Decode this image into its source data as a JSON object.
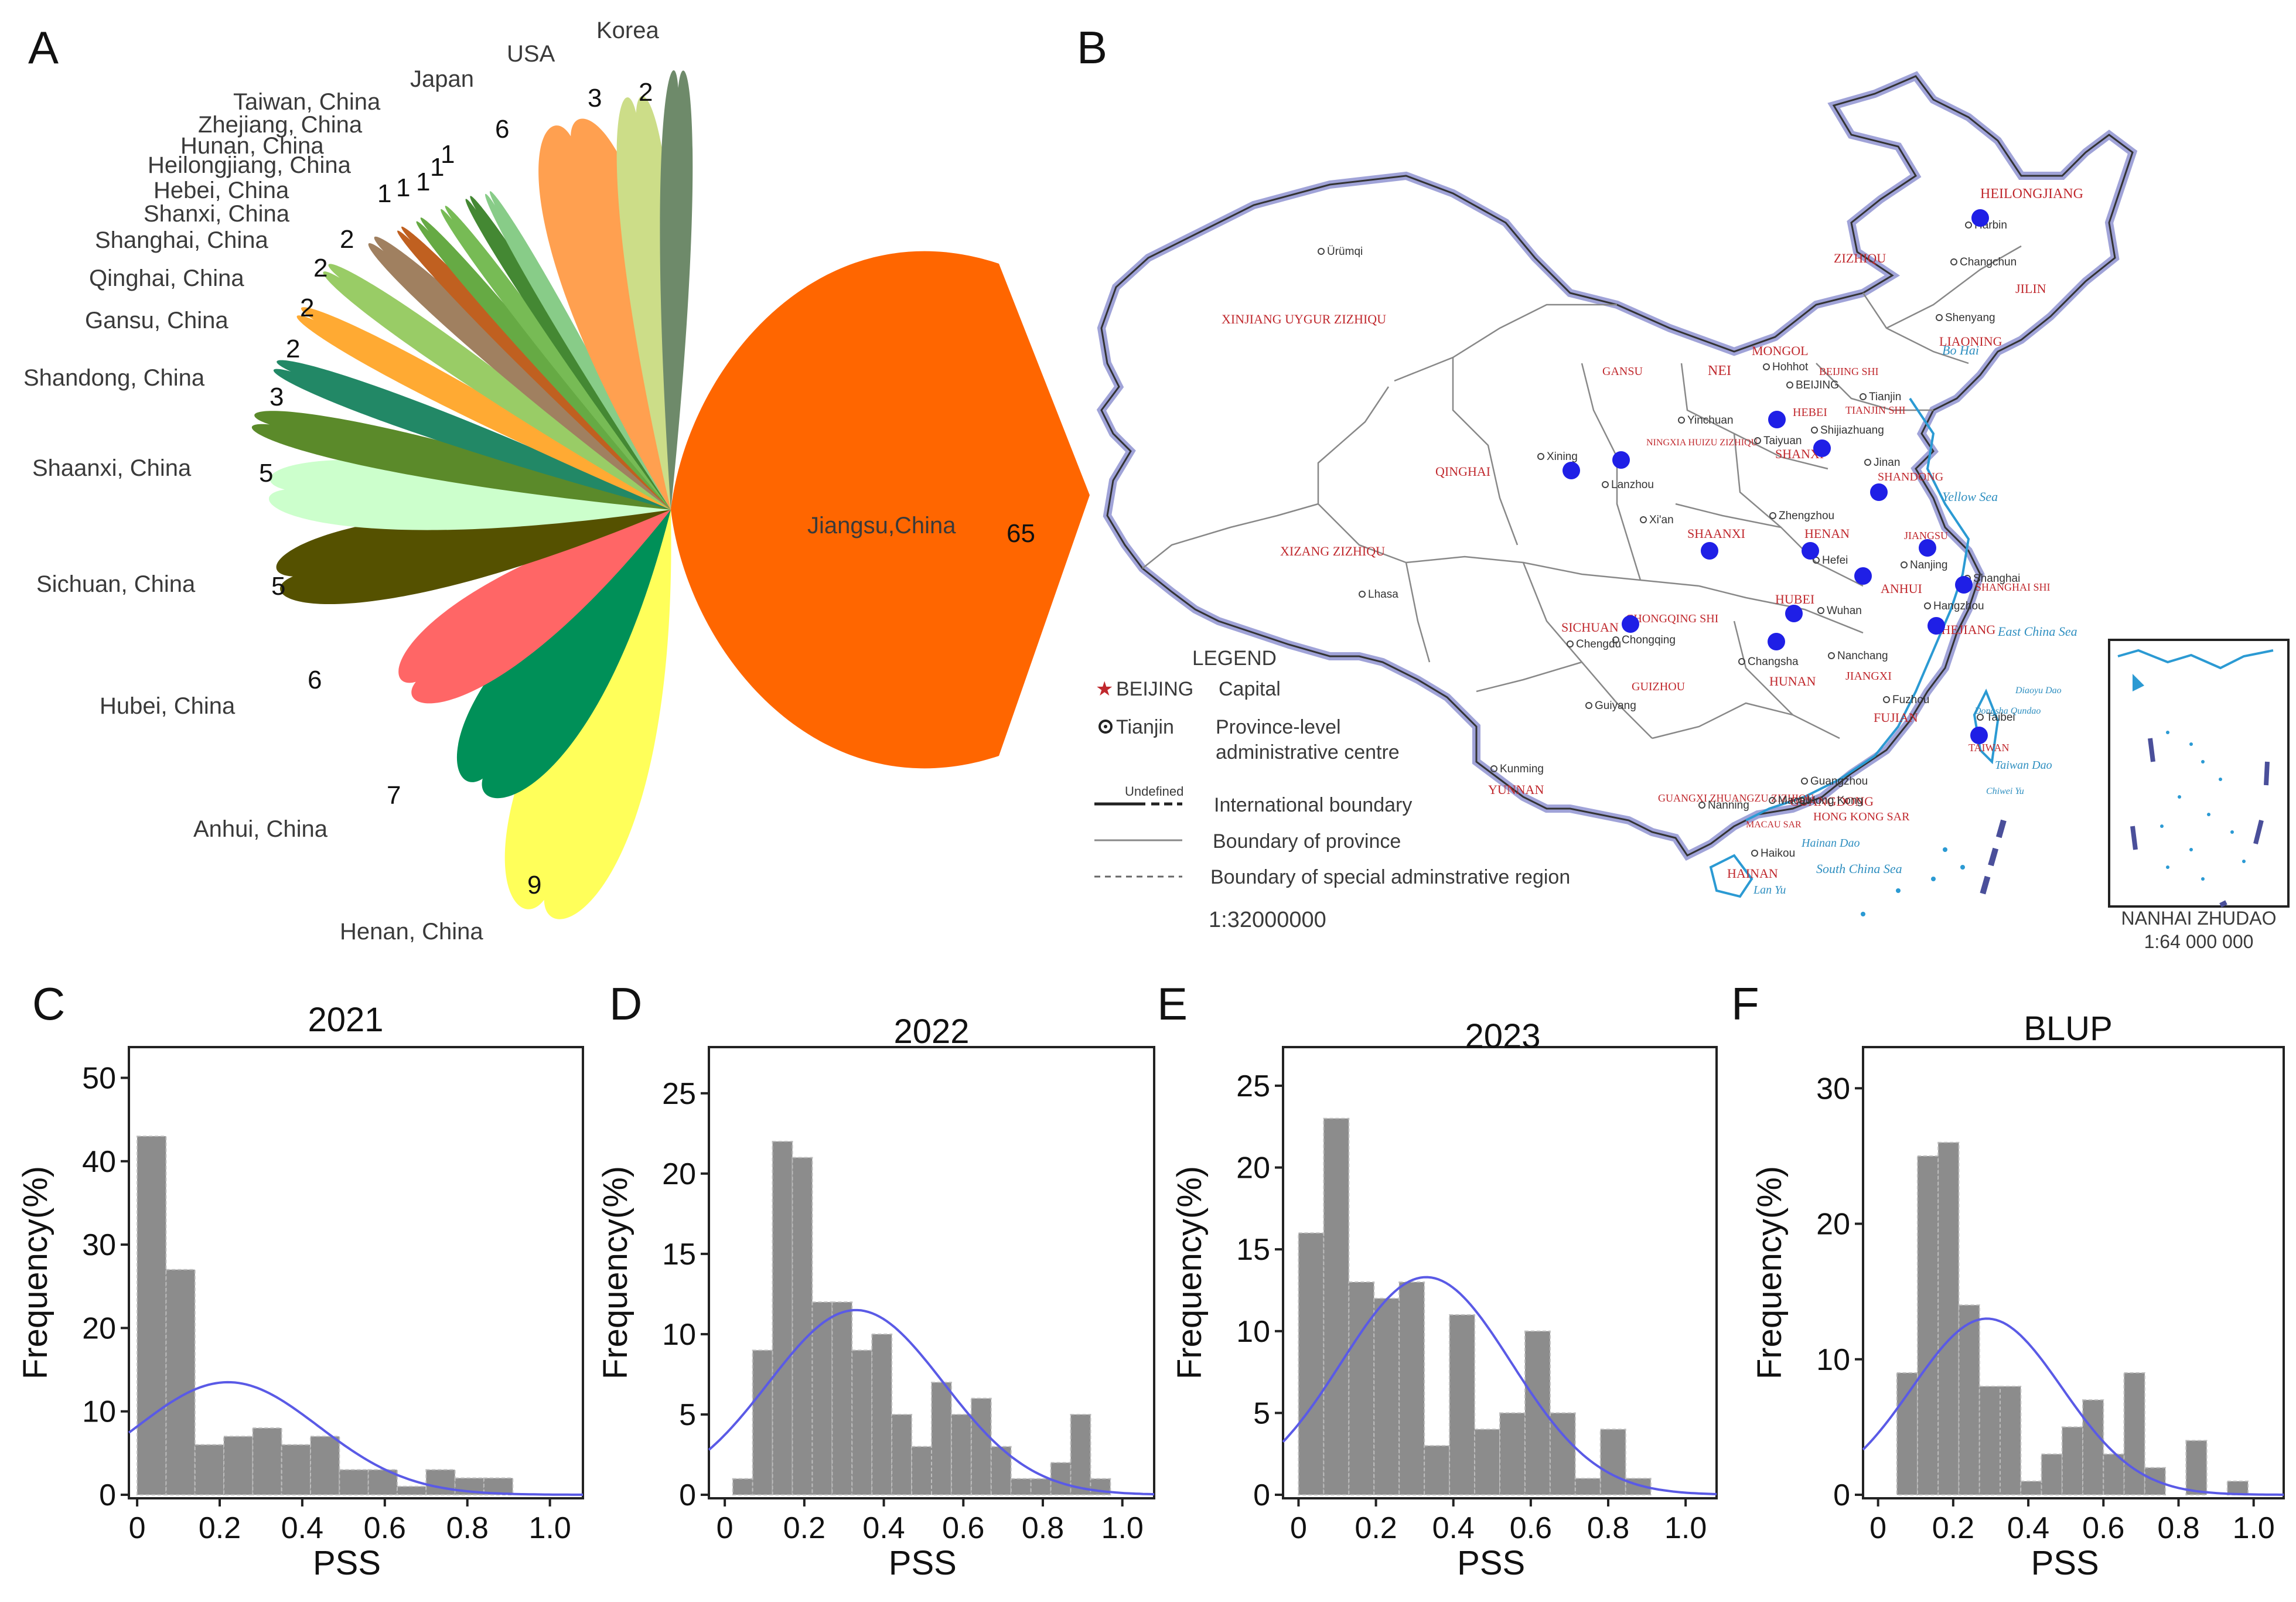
{
  "panels": {
    "A": "A",
    "B": "B",
    "C": "C",
    "D": "D",
    "E": "E",
    "F": "F"
  },
  "panel_a": {
    "entries": [
      {
        "name": "Jiangsu,China",
        "count": "65",
        "color": "#ff6600"
      },
      {
        "name": "Henan, China",
        "count": "9",
        "color": "#ffff5a"
      },
      {
        "name": "Anhui, China",
        "count": "7",
        "color": "#009058"
      },
      {
        "name": "Hubei, China",
        "count": "6",
        "color": "#ff6666"
      },
      {
        "name": "Sichuan, China",
        "count": "5",
        "color": "#555100"
      },
      {
        "name": "Shaanxi, China",
        "count": "5",
        "color": "#ccffcc"
      },
      {
        "name": "Shandong, China",
        "count": "3",
        "color": "#5b8a2a"
      },
      {
        "name": "Gansu, China",
        "count": "2",
        "color": "#228866"
      },
      {
        "name": "Qinghai, China",
        "count": "2",
        "color": "#ffaa33"
      },
      {
        "name": "Shanghai, China",
        "count": "2",
        "color": "#99cc66"
      },
      {
        "name": "Shanxi, China",
        "count": "2",
        "color": "#a08060"
      },
      {
        "name": "Hebei, China",
        "count": "1",
        "color": "#c06020"
      },
      {
        "name": "Heilongjiang, China",
        "count": "1",
        "color": "#66aa44"
      },
      {
        "name": "Hunan, China",
        "count": "1",
        "color": "#77bb55"
      },
      {
        "name": "Zhejiang, China",
        "count": "1",
        "color": "#448833"
      },
      {
        "name": "Taiwan, China",
        "count": "1",
        "color": "#88cc88"
      },
      {
        "name": "Japan",
        "count": "6",
        "color": "#ffa050"
      },
      {
        "name": "USA",
        "count": "3",
        "color": "#ccdd88"
      },
      {
        "name": "Korea",
        "count": "2",
        "color": "#6e8a6a"
      }
    ]
  },
  "panel_b": {
    "legend_title": "LEGEND",
    "capital_word": "BEIJING",
    "capital_desc": "Capital",
    "centre_word": "Tianjin",
    "centre_desc_1": "Province-level",
    "centre_desc_2": "administrative centre",
    "undefined_label": "Undefined",
    "intl_boundary": "International boundary",
    "province_boundary": "Boundary of province",
    "sar_boundary": "Boundary of special adminstrative region",
    "scale": "1:32000000",
    "inset_title": "NANHAI ZHUDAO",
    "inset_scale": "1:64 000 000",
    "provinces": [
      "HEILONGJIANG",
      "JILIN",
      "LIAONING",
      "NEI",
      "MONGOL",
      "ZIZHIQU",
      "XINJIANG  UYGUR  ZIZHIQU",
      "GANSU",
      "NINGXIA HUIZU ZIZHIQU",
      "QINGHAI",
      "XIZANG   ZIZHIQU",
      "SHANXI",
      "HEBEI",
      "BEIJING SHI",
      "TIANJIN SHI",
      "SHANDONG",
      "HENAN",
      "SHAANXI",
      "JIANGSU",
      "ANHUI",
      "SHANGHAI SHI",
      "ZHEJIANG",
      "HUBEI",
      "SICHUAN",
      "CHONGQING SHI",
      "HUNAN",
      "JIANGXI",
      "FUJIAN",
      "TAIWAN",
      "GUIZHOU",
      "YUNNAN",
      "GUANGXI ZHUANGZU ZIZHIQU",
      "GUANGDONG",
      "HONG KONG SAR",
      "MACAU SAR",
      "HAINAN"
    ],
    "cities": [
      "Ürümqi",
      "Harbin",
      "Changchun",
      "Shenyang",
      "Hohhot",
      "BEIJING",
      "Tianjin",
      "Shijiazhuang",
      "Taiyuan",
      "Jinan",
      "Yinchuan",
      "Xining",
      "Lanzhou",
      "Xi'an",
      "Zhengzhou",
      "Hefei",
      "Nanjing",
      "Shanghai",
      "Hangzhou",
      "Wuhan",
      "Chengdu",
      "Chongqing",
      "Changsha",
      "Nanchang",
      "Fuzhou",
      "Taibei",
      "Lhasa",
      "Guiyang",
      "Kunming",
      "Nanning",
      "Guangzhou",
      "Hong Kong",
      "Macau",
      "Haikou"
    ],
    "seas": [
      "Bo Hai",
      "Yellow Sea",
      "East China Sea",
      "South China Sea",
      "Taiwan Dao",
      "Hainan Dao",
      "Dongsha Qundao",
      "Diaoyu Dao",
      "Chiwei Yu",
      "Lan Yu"
    ]
  },
  "chart_data": [
    {
      "type": "bar",
      "panel": "C",
      "title": "2021",
      "xlabel": "PSS",
      "ylabel": "Frequency(%)",
      "ylim": [
        0,
        52
      ],
      "xlim": [
        -0.02,
        1.08
      ],
      "yticks": [
        "0",
        "10",
        "20",
        "30",
        "40",
        "50"
      ],
      "xticks": [
        "0",
        "0.2",
        "0.4",
        "0.6",
        "0.8",
        "1.0"
      ],
      "bin_width": 0.07,
      "bin_starts": [
        0.0,
        0.07,
        0.14,
        0.21,
        0.28,
        0.35,
        0.42,
        0.49,
        0.56,
        0.63,
        0.7,
        0.77,
        0.84
      ],
      "values": [
        43,
        27,
        6,
        7,
        8,
        6,
        7,
        3,
        3,
        1,
        3,
        2,
        2
      ],
      "fit": {
        "mean": 0.22,
        "sd": 0.22,
        "peak": 13.5
      }
    },
    {
      "type": "bar",
      "panel": "D",
      "title": "2022",
      "xlabel": "PSS",
      "ylabel": "Frequency(%)",
      "ylim": [
        0,
        27
      ],
      "xlim": [
        -0.04,
        1.08
      ],
      "yticks": [
        "0",
        "5",
        "10",
        "15",
        "20",
        "25"
      ],
      "xticks": [
        "0",
        "0.2",
        "0.4",
        "0.6",
        "0.8",
        "1.0"
      ],
      "bin_width": 0.05,
      "bin_starts": [
        0.02,
        0.07,
        0.12,
        0.17,
        0.22,
        0.27,
        0.32,
        0.37,
        0.42,
        0.47,
        0.52,
        0.57,
        0.62,
        0.67,
        0.72,
        0.77,
        0.82,
        0.87,
        0.92
      ],
      "values": [
        1,
        9,
        22,
        21,
        12,
        12,
        9,
        10,
        5,
        3,
        7,
        5,
        6,
        3,
        1,
        1,
        2,
        5,
        1
      ],
      "fit": {
        "mean": 0.33,
        "sd": 0.22,
        "peak": 11.5
      }
    },
    {
      "type": "bar",
      "panel": "E",
      "title": "2023",
      "xlabel": "PSS",
      "ylabel": "Frequency(%)",
      "ylim": [
        0,
        26.5
      ],
      "xlim": [
        -0.04,
        1.08
      ],
      "yticks": [
        "0",
        "5",
        "10",
        "15",
        "20",
        "25"
      ],
      "xticks": [
        "0",
        "0.2",
        "0.4",
        "0.6",
        "0.8",
        "1.0"
      ],
      "bin_width": 0.065,
      "bin_starts": [
        0.0,
        0.065,
        0.13,
        0.195,
        0.26,
        0.325,
        0.39,
        0.455,
        0.52,
        0.585,
        0.65,
        0.715,
        0.78,
        0.845
      ],
      "values": [
        16,
        23,
        13,
        12,
        13,
        3,
        11,
        4,
        5,
        10,
        5,
        1,
        4,
        1
      ],
      "fit": {
        "mean": 0.33,
        "sd": 0.22,
        "peak": 13.3
      }
    },
    {
      "type": "bar",
      "panel": "F",
      "title": "BLUP",
      "xlabel": "PSS",
      "ylabel": "Frequency(%)",
      "ylim": [
        0,
        32
      ],
      "xlim": [
        -0.04,
        1.08
      ],
      "yticks": [
        "0",
        "10",
        "20",
        "30"
      ],
      "xticks": [
        "0",
        "0.2",
        "0.4",
        "0.6",
        "0.8",
        "1.0"
      ],
      "bin_width": 0.055,
      "bin_starts": [
        0.05,
        0.105,
        0.16,
        0.215,
        0.27,
        0.325,
        0.38,
        0.435,
        0.49,
        0.545,
        0.6,
        0.655,
        0.71,
        0.765,
        0.82,
        0.875,
        0.93
      ],
      "values": [
        9,
        25,
        26,
        14,
        8,
        8,
        1,
        3,
        5,
        7,
        3,
        9,
        2,
        0,
        4,
        0,
        1
      ],
      "fit": {
        "mean": 0.29,
        "sd": 0.2,
        "peak": 13
      }
    }
  ]
}
